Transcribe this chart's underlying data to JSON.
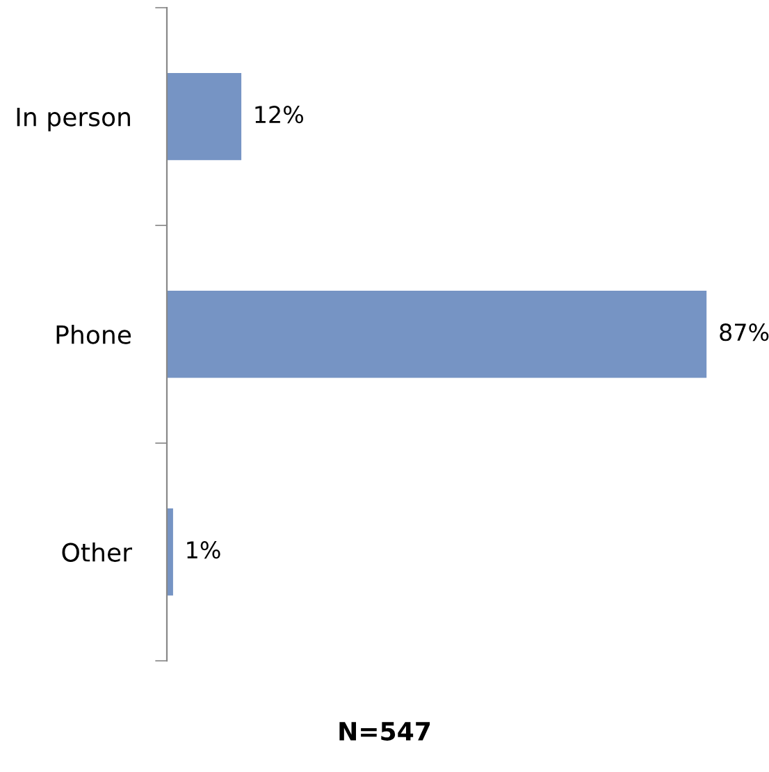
{
  "chart_data": {
    "type": "bar",
    "orientation": "horizontal",
    "categories": [
      "In person",
      "Phone",
      "Other"
    ],
    "values": [
      12,
      87,
      1
    ],
    "value_labels": [
      "12%",
      "87%",
      "1%"
    ],
    "color": "#7694c4",
    "annotations": [
      "N=547"
    ]
  }
}
